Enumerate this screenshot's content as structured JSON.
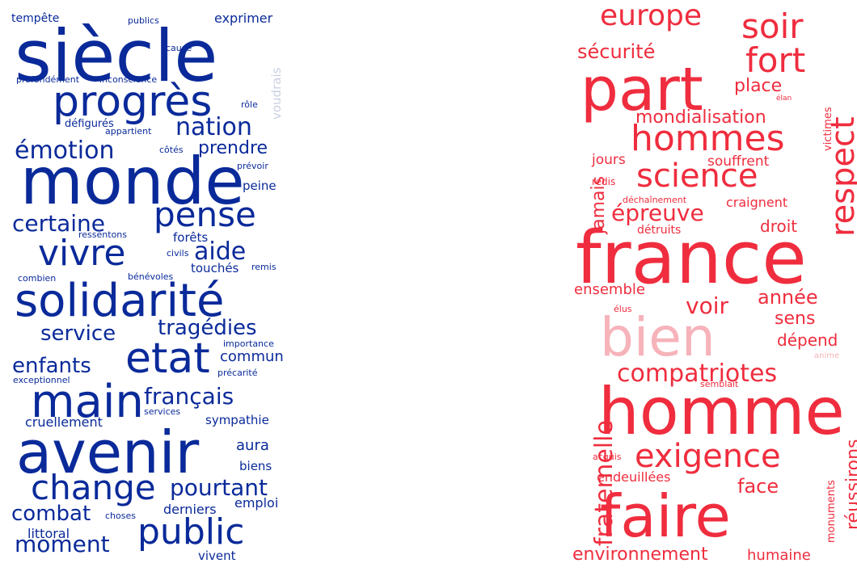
{
  "colors": {
    "left": "#0a2a9a",
    "left_faded": "#c9d0e3",
    "right": "#ef2d3e",
    "right_faded": "#f6b3ba"
  },
  "left_cloud": {
    "words": [
      "tempête",
      "publics",
      "exprimer",
      "siècle",
      "cause",
      "voudrais",
      "profondément",
      "inconscience",
      "progrès",
      "rôle",
      "nation",
      "défigurés",
      "appartient",
      "émotion",
      "prendre",
      "côtés",
      "monde",
      "prévoir",
      "peine",
      "certaine",
      "pense",
      "ressentons",
      "forêts",
      "vivre",
      "aide",
      "civils",
      "touchés",
      "remis",
      "combien",
      "bénévoles",
      "solidarité",
      "service",
      "tragédies",
      "importance",
      "etat",
      "commun",
      "enfants",
      "précarité",
      "exceptionnel",
      "main",
      "français",
      "services",
      "cruellement",
      "sympathie",
      "avenir",
      "aura",
      "biens",
      "change",
      "pourtant",
      "combat",
      "choses",
      "emploi",
      "derniers",
      "public",
      "littoral",
      "moment",
      "vivent"
    ]
  },
  "right_cloud": {
    "words": [
      "europe",
      "soir",
      "sécurité",
      "fort",
      "part",
      "place",
      "élan",
      "victimes",
      "mondialisation",
      "respect",
      "hommes",
      "jamais",
      "jours",
      "souffrent",
      "science",
      "redis",
      "déchaînement",
      "craignent",
      "épreuve",
      "détruits",
      "droit",
      "france",
      "ensemble",
      "année",
      "voir",
      "sens",
      "élus",
      "bien",
      "dépend",
      "anime",
      "fraternelle",
      "compatriotes",
      "semblait",
      "homme",
      "réussirons",
      "exigence",
      "acquis",
      "endeuillées",
      "face",
      "monuments",
      "faire",
      "environnement",
      "humaine"
    ]
  }
}
